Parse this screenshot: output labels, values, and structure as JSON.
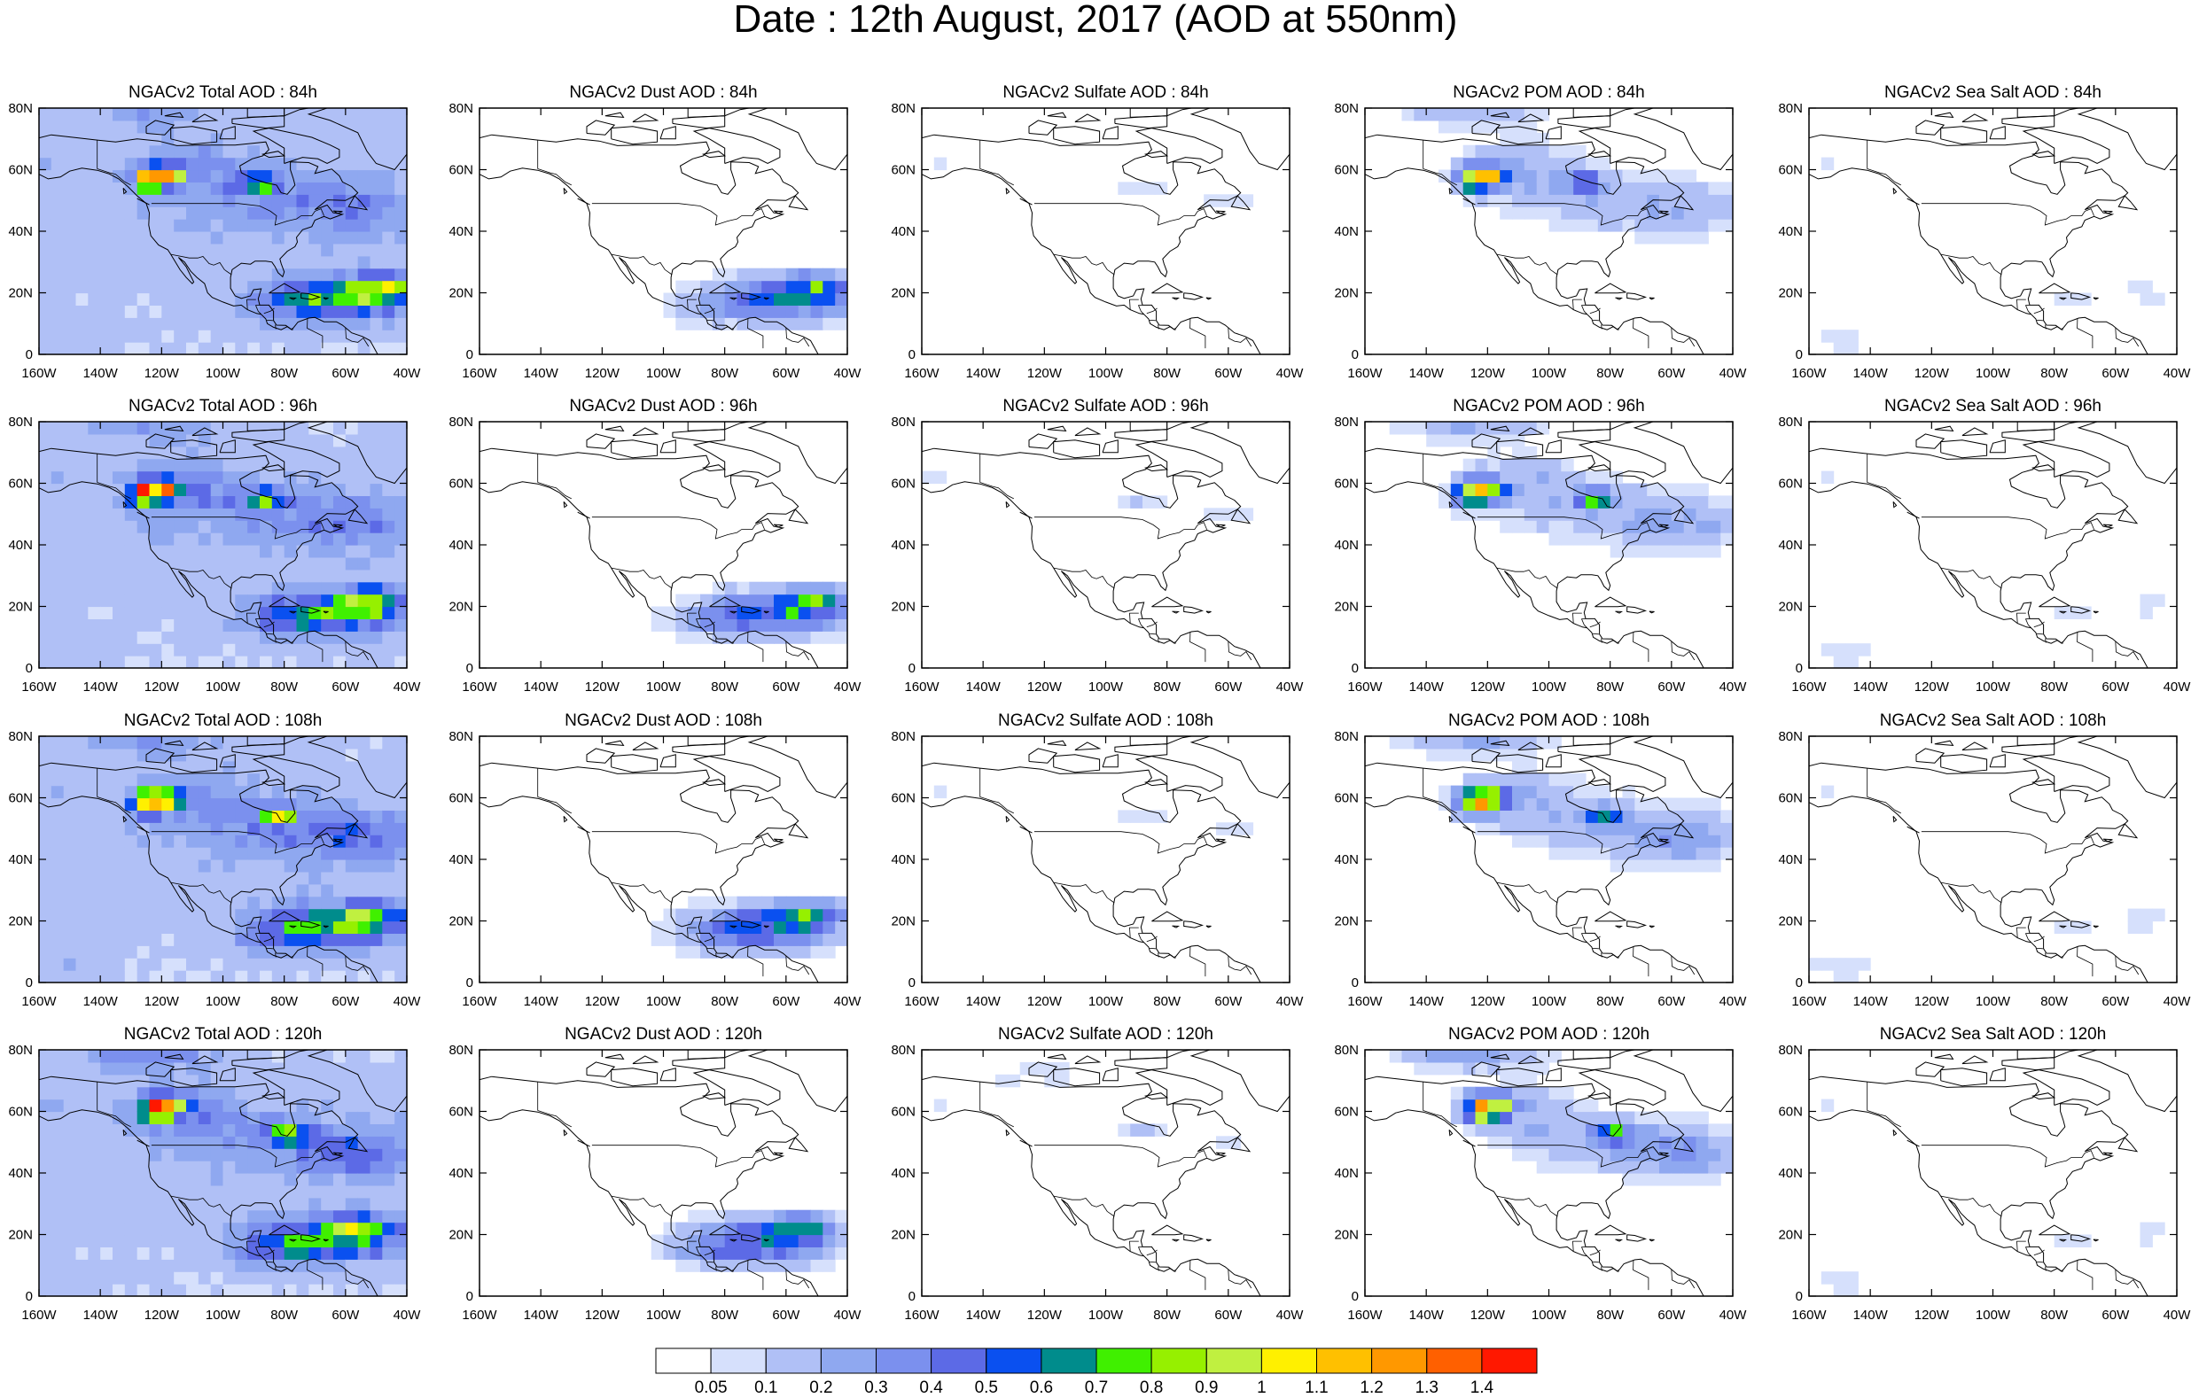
{
  "title": "Date : 12th August, 2017 (AOD at 550nm)",
  "rows": [
    "84h",
    "96h",
    "108h",
    "120h"
  ],
  "columns": [
    {
      "species": "Total"
    },
    {
      "species": "Dust"
    },
    {
      "species": "Sulfate"
    },
    {
      "species": "POM"
    },
    {
      "species": "Sea Salt"
    }
  ],
  "panel_titles": [
    [
      "NGACv2 Total AOD : 84h",
      "NGACv2 Dust AOD : 84h",
      "NGACv2 Sulfate AOD : 84h",
      "NGACv2 POM AOD : 84h",
      "NGACv2 Sea Salt AOD : 84h"
    ],
    [
      "NGACv2 Total AOD : 96h",
      "NGACv2 Dust AOD : 96h",
      "NGACv2 Sulfate AOD : 96h",
      "NGACv2 POM AOD : 96h",
      "NGACv2 Sea Salt AOD : 96h"
    ],
    [
      "NGACv2 Total AOD : 108h",
      "NGACv2 Dust AOD : 108h",
      "NGACv2 Sulfate AOD : 108h",
      "NGACv2 POM AOD : 108h",
      "NGACv2 Sea Salt AOD : 108h"
    ],
    [
      "NGACv2 Total AOD : 120h",
      "NGACv2 Dust AOD : 120h",
      "NGACv2 Sulfate AOD : 120h",
      "NGACv2 POM AOD : 120h",
      "NGACv2 Sea Salt  AOD : 120h"
    ]
  ],
  "lon_ticks": [
    "160W",
    "140W",
    "120W",
    "100W",
    "80W",
    "60W",
    "40W"
  ],
  "lat_ticks": [
    "0",
    "20N",
    "40N",
    "60N",
    "80N"
  ],
  "colorbar": {
    "labels": [
      "0.05",
      "0.1",
      "0.2",
      "0.3",
      "0.4",
      "0.5",
      "0.6",
      "0.7",
      "0.8",
      "0.9",
      "1",
      "1.1",
      "1.2",
      "1.3",
      "1.4"
    ],
    "colors": [
      "#ffffff",
      "#d6e0fc",
      "#b0c0f6",
      "#8fa8f0",
      "#7b90ee",
      "#5c6ae6",
      "#0a50f0",
      "#008c8c",
      "#40f000",
      "#96f000",
      "#c0f040",
      "#fff000",
      "#ffc000",
      "#ff9800",
      "#ff6000",
      "#ff1800"
    ]
  }
}
